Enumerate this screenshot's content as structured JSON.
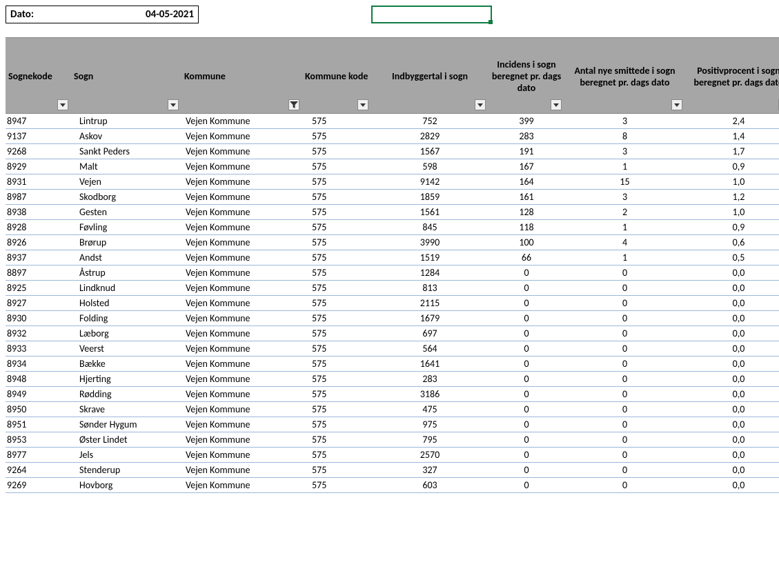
{
  "header": {
    "date_label": "Dato:",
    "date_value": "04-05-2021"
  },
  "table": {
    "columns": [
      {
        "key": "sognekode",
        "label": "Sognekode",
        "align": "left",
        "filter": "arrow"
      },
      {
        "key": "sogn",
        "label": "Sogn",
        "align": "left",
        "filter": "arrow"
      },
      {
        "key": "kommune",
        "label": "Kommune",
        "align": "left",
        "filter": "funnel"
      },
      {
        "key": "kommunekode",
        "label": "Kommune kode",
        "align": "left",
        "filter": "arrow"
      },
      {
        "key": "indbygger",
        "label": "Indbyggertal i sogn",
        "align": "center",
        "filter": "arrow"
      },
      {
        "key": "incidens",
        "label": "Incidens i sogn beregnet pr. dags dato",
        "align": "center",
        "filter": "arrow"
      },
      {
        "key": "antal",
        "label": "Antal nye smittede i sogn beregnet pr. dags dato",
        "align": "center",
        "filter": "arrow"
      },
      {
        "key": "positiv",
        "label": "Positivprocent i sogn beregnet pr. dags dato",
        "align": "center",
        "filter": "arrow"
      }
    ],
    "rows": [
      [
        "8947",
        "Lintrup",
        "Vejen Kommune",
        "575",
        "752",
        "399",
        "3",
        "2,4"
      ],
      [
        "9137",
        "Askov",
        "Vejen Kommune",
        "575",
        "2829",
        "283",
        "8",
        "1,4"
      ],
      [
        "9268",
        "Sankt Peders",
        "Vejen Kommune",
        "575",
        "1567",
        "191",
        "3",
        "1,7"
      ],
      [
        "8929",
        "Malt",
        "Vejen Kommune",
        "575",
        "598",
        "167",
        "1",
        "0,9"
      ],
      [
        "8931",
        "Vejen",
        "Vejen Kommune",
        "575",
        "9142",
        "164",
        "15",
        "1,0"
      ],
      [
        "8987",
        "Skodborg",
        "Vejen Kommune",
        "575",
        "1859",
        "161",
        "3",
        "1,2"
      ],
      [
        "8938",
        "Gesten",
        "Vejen Kommune",
        "575",
        "1561",
        "128",
        "2",
        "1,0"
      ],
      [
        "8928",
        "Føvling",
        "Vejen Kommune",
        "575",
        "845",
        "118",
        "1",
        "0,9"
      ],
      [
        "8926",
        "Brørup",
        "Vejen Kommune",
        "575",
        "3990",
        "100",
        "4",
        "0,6"
      ],
      [
        "8937",
        "Andst",
        "Vejen Kommune",
        "575",
        "1519",
        "66",
        "1",
        "0,5"
      ],
      [
        "8897",
        "Åstrup",
        "Vejen Kommune",
        "575",
        "1284",
        "0",
        "0",
        "0,0"
      ],
      [
        "8925",
        "Lindknud",
        "Vejen Kommune",
        "575",
        "813",
        "0",
        "0",
        "0,0"
      ],
      [
        "8927",
        "Holsted",
        "Vejen Kommune",
        "575",
        "2115",
        "0",
        "0",
        "0,0"
      ],
      [
        "8930",
        "Folding",
        "Vejen Kommune",
        "575",
        "1679",
        "0",
        "0",
        "0,0"
      ],
      [
        "8932",
        "Læborg",
        "Vejen Kommune",
        "575",
        "697",
        "0",
        "0",
        "0,0"
      ],
      [
        "8933",
        "Veerst",
        "Vejen Kommune",
        "575",
        "564",
        "0",
        "0",
        "0,0"
      ],
      [
        "8934",
        "Bække",
        "Vejen Kommune",
        "575",
        "1641",
        "0",
        "0",
        "0,0"
      ],
      [
        "8948",
        "Hjerting",
        "Vejen Kommune",
        "575",
        "283",
        "0",
        "0",
        "0,0"
      ],
      [
        "8949",
        "Rødding",
        "Vejen Kommune",
        "575",
        "3186",
        "0",
        "0",
        "0,0"
      ],
      [
        "8950",
        "Skrave",
        "Vejen Kommune",
        "575",
        "475",
        "0",
        "0",
        "0,0"
      ],
      [
        "8951",
        "Sønder Hygum",
        "Vejen Kommune",
        "575",
        "975",
        "0",
        "0",
        "0,0"
      ],
      [
        "8953",
        "Øster Lindet",
        "Vejen Kommune",
        "575",
        "795",
        "0",
        "0",
        "0,0"
      ],
      [
        "8977",
        "Jels",
        "Vejen Kommune",
        "575",
        "2570",
        "0",
        "0",
        "0,0"
      ],
      [
        "9264",
        "Stenderup",
        "Vejen Kommune",
        "575",
        "327",
        "0",
        "0",
        "0,0"
      ],
      [
        "9269",
        "Hovborg",
        "Vejen Kommune",
        "575",
        "603",
        "0",
        "0",
        "0,0"
      ]
    ]
  },
  "style": {
    "header_bg": "#a6a6a6",
    "row_border": "#9bb7d9",
    "active_cell_border": "#107c41"
  }
}
